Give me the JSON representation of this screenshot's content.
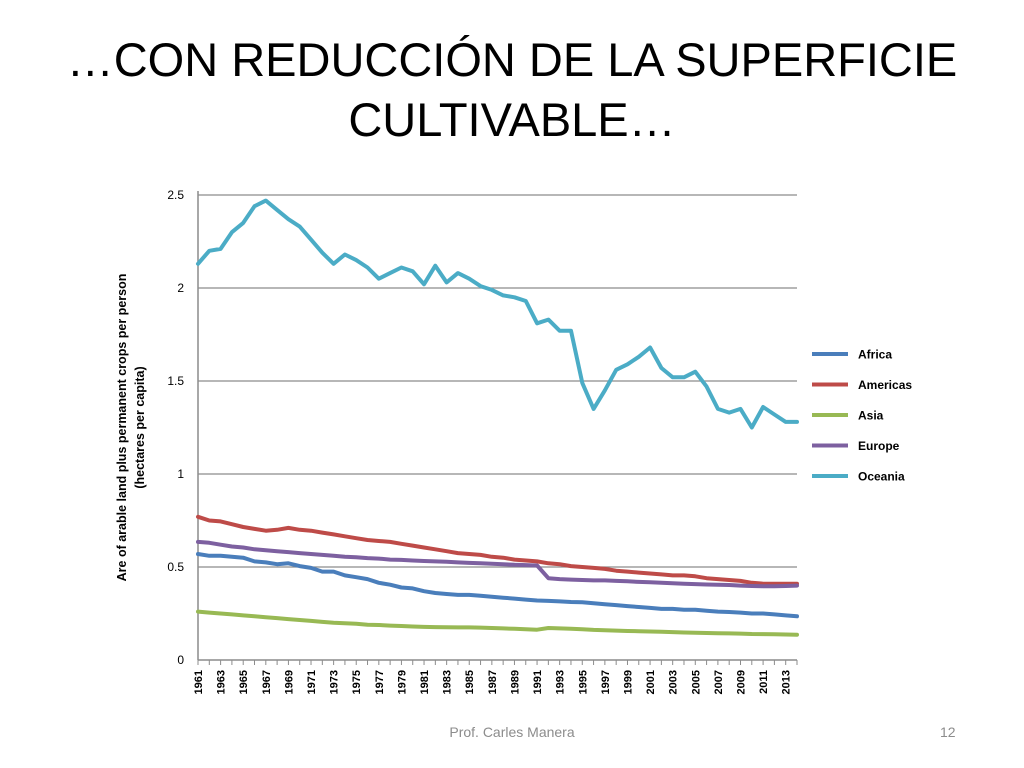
{
  "slide": {
    "title_line1": "…CON REDUCCIÓN DE LA  SUPERFICIE",
    "title_line2": "CULTIVABLE…",
    "author": "Prof. Carles Manera",
    "page_number": "12"
  },
  "chart_data": {
    "type": "line",
    "title": "",
    "xlabel": "",
    "ylabel": "Are of arable land plus permanent crops per person",
    "ylabel_line2": "(hectares per capita)",
    "ylim": [
      0,
      2.5
    ],
    "yticks": [
      0,
      0.5,
      1,
      1.5,
      2,
      2.5
    ],
    "ytick_labels": [
      "0",
      "0.5",
      "1",
      "1.5",
      "2",
      "2.5"
    ],
    "xlim": [
      1961,
      2014
    ],
    "xticks": [
      1961,
      1963,
      1965,
      1967,
      1969,
      1971,
      1973,
      1975,
      1977,
      1979,
      1981,
      1983,
      1985,
      1987,
      1989,
      1991,
      1993,
      1995,
      1997,
      1999,
      2001,
      2003,
      2005,
      2007,
      2009,
      2011,
      2013
    ],
    "xtick_labels": [
      "1961",
      "1963",
      "1965",
      "1967",
      "1969",
      "1971",
      "1973",
      "1975",
      "1977",
      "1979",
      "1981",
      "1983",
      "1985",
      "1987",
      "1989",
      "1991",
      "1993",
      "1995",
      "1997",
      "1999",
      "2001",
      "2003",
      "2005",
      "2007",
      "2009",
      "2011",
      "2013"
    ],
    "grid": "horizontal",
    "legend_position": "right",
    "series": [
      {
        "name": "Africa",
        "color": "#4a7ebb",
        "x": [
          1961,
          1962,
          1963,
          1964,
          1965,
          1966,
          1967,
          1968,
          1969,
          1970,
          1971,
          1972,
          1973,
          1974,
          1975,
          1976,
          1977,
          1978,
          1979,
          1980,
          1981,
          1982,
          1983,
          1984,
          1985,
          1986,
          1987,
          1988,
          1989,
          1990,
          1991,
          1992,
          1993,
          1994,
          1995,
          1996,
          1997,
          1998,
          1999,
          2000,
          2001,
          2002,
          2003,
          2004,
          2005,
          2006,
          2007,
          2008,
          2009,
          2010,
          2011,
          2012,
          2013,
          2014
        ],
        "values": [
          0.57,
          0.56,
          0.56,
          0.555,
          0.55,
          0.53,
          0.525,
          0.515,
          0.52,
          0.505,
          0.495,
          0.475,
          0.475,
          0.455,
          0.445,
          0.435,
          0.415,
          0.405,
          0.39,
          0.385,
          0.37,
          0.36,
          0.355,
          0.35,
          0.35,
          0.345,
          0.34,
          0.335,
          0.33,
          0.325,
          0.32,
          0.318,
          0.315,
          0.312,
          0.31,
          0.305,
          0.3,
          0.295,
          0.29,
          0.285,
          0.28,
          0.275,
          0.275,
          0.27,
          0.27,
          0.265,
          0.26,
          0.258,
          0.255,
          0.25,
          0.25,
          0.245,
          0.24,
          0.235
        ]
      },
      {
        "name": "Americas",
        "color": "#be4b48",
        "x": [
          1961,
          1962,
          1963,
          1964,
          1965,
          1966,
          1967,
          1968,
          1969,
          1970,
          1971,
          1972,
          1973,
          1974,
          1975,
          1976,
          1977,
          1978,
          1979,
          1980,
          1981,
          1982,
          1983,
          1984,
          1985,
          1986,
          1987,
          1988,
          1989,
          1990,
          1991,
          1992,
          1993,
          1994,
          1995,
          1996,
          1997,
          1998,
          1999,
          2000,
          2001,
          2002,
          2003,
          2004,
          2005,
          2006,
          2007,
          2008,
          2009,
          2010,
          2011,
          2012,
          2013,
          2014
        ],
        "values": [
          0.77,
          0.75,
          0.745,
          0.73,
          0.715,
          0.705,
          0.695,
          0.7,
          0.71,
          0.7,
          0.695,
          0.685,
          0.675,
          0.665,
          0.655,
          0.645,
          0.64,
          0.635,
          0.625,
          0.615,
          0.605,
          0.595,
          0.585,
          0.575,
          0.57,
          0.565,
          0.555,
          0.55,
          0.54,
          0.535,
          0.53,
          0.52,
          0.515,
          0.505,
          0.5,
          0.495,
          0.49,
          0.48,
          0.475,
          0.47,
          0.465,
          0.46,
          0.455,
          0.455,
          0.45,
          0.44,
          0.435,
          0.43,
          0.425,
          0.415,
          0.41,
          0.41,
          0.41,
          0.41
        ]
      },
      {
        "name": "Asia",
        "color": "#98b954",
        "x": [
          1961,
          1962,
          1963,
          1964,
          1965,
          1966,
          1967,
          1968,
          1969,
          1970,
          1971,
          1972,
          1973,
          1974,
          1975,
          1976,
          1977,
          1978,
          1979,
          1980,
          1981,
          1982,
          1983,
          1984,
          1985,
          1986,
          1987,
          1988,
          1989,
          1990,
          1991,
          1992,
          1993,
          1994,
          1995,
          1996,
          1997,
          1998,
          1999,
          2000,
          2001,
          2002,
          2003,
          2004,
          2005,
          2006,
          2007,
          2008,
          2009,
          2010,
          2011,
          2012,
          2013,
          2014
        ],
        "values": [
          0.26,
          0.255,
          0.25,
          0.245,
          0.24,
          0.235,
          0.23,
          0.225,
          0.22,
          0.215,
          0.21,
          0.205,
          0.2,
          0.198,
          0.195,
          0.19,
          0.188,
          0.185,
          0.183,
          0.18,
          0.178,
          0.177,
          0.176,
          0.175,
          0.175,
          0.174,
          0.172,
          0.17,
          0.168,
          0.165,
          0.163,
          0.172,
          0.17,
          0.168,
          0.165,
          0.162,
          0.16,
          0.158,
          0.156,
          0.155,
          0.153,
          0.152,
          0.15,
          0.148,
          0.147,
          0.145,
          0.144,
          0.143,
          0.142,
          0.14,
          0.139,
          0.138,
          0.137,
          0.136
        ]
      },
      {
        "name": "Europe",
        "color": "#7d60a0",
        "x": [
          1961,
          1962,
          1963,
          1964,
          1965,
          1966,
          1967,
          1968,
          1969,
          1970,
          1971,
          1972,
          1973,
          1974,
          1975,
          1976,
          1977,
          1978,
          1979,
          1980,
          1981,
          1982,
          1983,
          1984,
          1985,
          1986,
          1987,
          1988,
          1989,
          1990,
          1991,
          1992,
          1993,
          1994,
          1995,
          1996,
          1997,
          1998,
          1999,
          2000,
          2001,
          2002,
          2003,
          2004,
          2005,
          2006,
          2007,
          2008,
          2009,
          2010,
          2011,
          2012,
          2013,
          2014
        ],
        "values": [
          0.635,
          0.63,
          0.62,
          0.61,
          0.605,
          0.595,
          0.59,
          0.585,
          0.58,
          0.575,
          0.57,
          0.565,
          0.56,
          0.555,
          0.552,
          0.548,
          0.545,
          0.54,
          0.538,
          0.535,
          0.532,
          0.53,
          0.528,
          0.525,
          0.522,
          0.52,
          0.518,
          0.515,
          0.512,
          0.51,
          0.508,
          0.44,
          0.435,
          0.432,
          0.43,
          0.428,
          0.428,
          0.425,
          0.423,
          0.42,
          0.418,
          0.415,
          0.413,
          0.41,
          0.408,
          0.406,
          0.405,
          0.403,
          0.4,
          0.398,
          0.397,
          0.397,
          0.398,
          0.4
        ]
      },
      {
        "name": "Oceania",
        "color": "#4bacc6",
        "x": [
          1961,
          1962,
          1963,
          1964,
          1965,
          1966,
          1967,
          1968,
          1969,
          1970,
          1971,
          1972,
          1973,
          1974,
          1975,
          1976,
          1977,
          1978,
          1979,
          1980,
          1981,
          1982,
          1983,
          1984,
          1985,
          1986,
          1987,
          1988,
          1989,
          1990,
          1991,
          1992,
          1993,
          1994,
          1995,
          1996,
          1997,
          1998,
          1999,
          2000,
          2001,
          2002,
          2003,
          2004,
          2005,
          2006,
          2007,
          2008,
          2009,
          2010,
          2011,
          2012,
          2013,
          2014
        ],
        "values": [
          2.13,
          2.2,
          2.21,
          2.3,
          2.35,
          2.44,
          2.47,
          2.42,
          2.37,
          2.33,
          2.26,
          2.19,
          2.13,
          2.18,
          2.15,
          2.11,
          2.05,
          2.08,
          2.11,
          2.09,
          2.02,
          2.12,
          2.03,
          2.08,
          2.05,
          2.01,
          1.99,
          1.96,
          1.95,
          1.93,
          1.81,
          1.83,
          1.77,
          1.77,
          1.49,
          1.35,
          1.45,
          1.56,
          1.59,
          1.63,
          1.68,
          1.57,
          1.52,
          1.52,
          1.55,
          1.47,
          1.35,
          1.33,
          1.35,
          1.25,
          1.36,
          1.32,
          1.28,
          1.28
        ]
      }
    ]
  }
}
